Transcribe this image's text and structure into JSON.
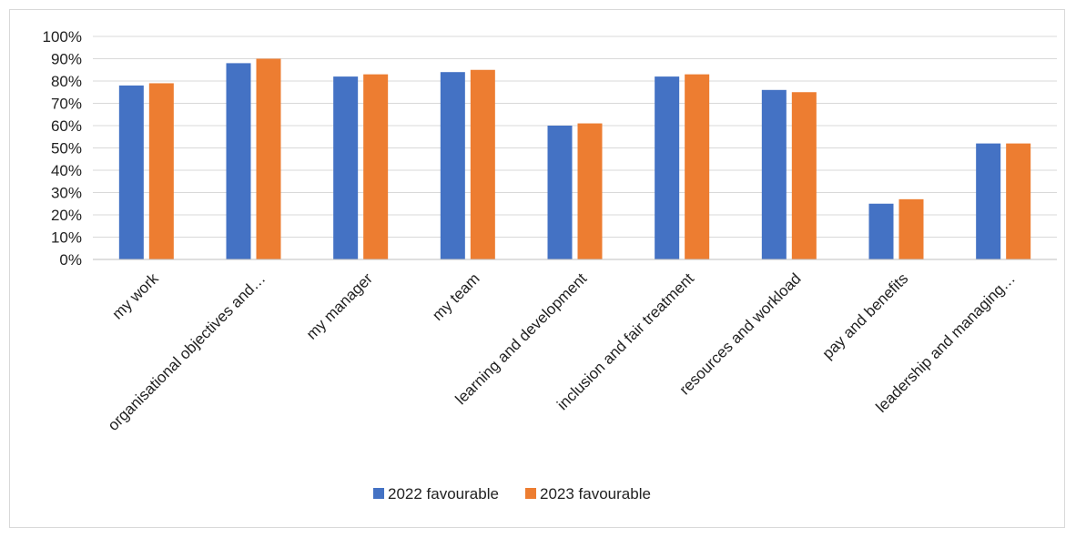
{
  "chart_data": {
    "type": "bar",
    "title": "",
    "xlabel": "",
    "ylabel": "",
    "categories": [
      "my work",
      "organisational objectives and…",
      "my manager",
      "my team",
      "learning and development",
      "inclusion and fair treatment",
      "resources and workload",
      "pay and benefits",
      "leadership and managing…"
    ],
    "series": [
      {
        "name": "2022 favourable",
        "color": "#4472C4",
        "values": [
          78,
          88,
          82,
          84,
          60,
          82,
          76,
          25,
          52
        ]
      },
      {
        "name": "2023 favourable",
        "color": "#ED7D31",
        "values": [
          79,
          90,
          83,
          85,
          61,
          83,
          75,
          27,
          52
        ]
      }
    ],
    "ylim": [
      0,
      100
    ],
    "y_ticks": [
      "0%",
      "10%",
      "20%",
      "30%",
      "40%",
      "50%",
      "60%",
      "70%",
      "80%",
      "90%",
      "100%"
    ],
    "grid": true,
    "legend_position": "bottom"
  }
}
